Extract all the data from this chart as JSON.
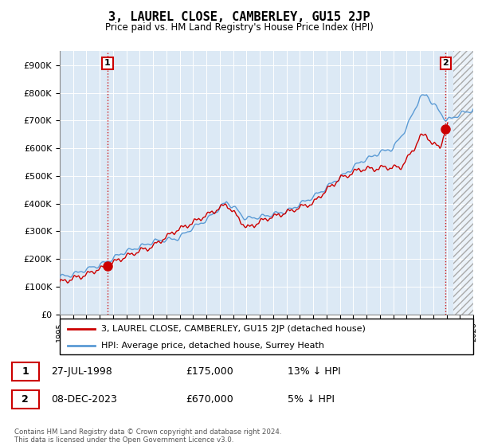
{
  "title": "3, LAUREL CLOSE, CAMBERLEY, GU15 2JP",
  "subtitle": "Price paid vs. HM Land Registry's House Price Index (HPI)",
  "ylim": [
    0,
    950000
  ],
  "yticks": [
    0,
    100000,
    200000,
    300000,
    400000,
    500000,
    600000,
    700000,
    800000,
    900000
  ],
  "ytick_labels": [
    "£0",
    "£100K",
    "£200K",
    "£300K",
    "£400K",
    "£500K",
    "£600K",
    "£700K",
    "£800K",
    "£900K"
  ],
  "hpi_color": "#5b9bd5",
  "price_color": "#cc0000",
  "bg_color": "#ffffff",
  "plot_bg_color": "#dce9f5",
  "grid_color": "#ffffff",
  "sale1_x": 1998.58,
  "sale1_y": 175000,
  "sale1_label": "1",
  "sale2_x": 2023.92,
  "sale2_y": 670000,
  "sale2_label": "2",
  "xlim_start": 1995,
  "xlim_end": 2026,
  "future_start": 2024.5,
  "legend_label_price": "3, LAUREL CLOSE, CAMBERLEY, GU15 2JP (detached house)",
  "legend_label_hpi": "HPI: Average price, detached house, Surrey Heath",
  "annotation1_date": "27-JUL-1998",
  "annotation1_price": "£175,000",
  "annotation1_hpi": "13% ↓ HPI",
  "annotation2_date": "08-DEC-2023",
  "annotation2_price": "£670,000",
  "annotation2_hpi": "5% ↓ HPI",
  "copyright": "Contains HM Land Registry data © Crown copyright and database right 2024.\nThis data is licensed under the Open Government Licence v3.0."
}
